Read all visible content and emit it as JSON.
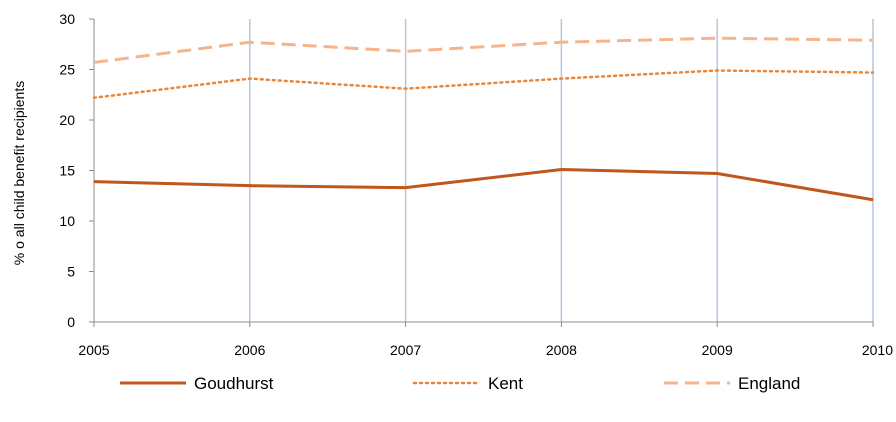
{
  "chart_data": {
    "type": "line",
    "title": "",
    "xlabel": "",
    "ylabel": "% o all child benefit recipients",
    "x": [
      "2005",
      "2006",
      "2007",
      "2008",
      "2009",
      "2010"
    ],
    "ylim": [
      0,
      30
    ],
    "yticks": [
      "0",
      "5",
      "10",
      "15",
      "20",
      "25",
      "30"
    ],
    "grid": "vertical",
    "legend": "bottom",
    "series": [
      {
        "name": "Goudhurst",
        "values": [
          13.9,
          13.5,
          13.3,
          15.1,
          14.7,
          12.1
        ],
        "color": "#c0561c",
        "style": "solid"
      },
      {
        "name": "Kent",
        "values": [
          22.2,
          24.1,
          23.1,
          24.1,
          24.9,
          24.7
        ],
        "color": "#e8863a",
        "style": "dotted"
      },
      {
        "name": "England",
        "values": [
          25.7,
          27.7,
          26.8,
          27.7,
          28.1,
          27.9
        ],
        "color": "#f6b48c",
        "style": "dashed"
      }
    ]
  }
}
